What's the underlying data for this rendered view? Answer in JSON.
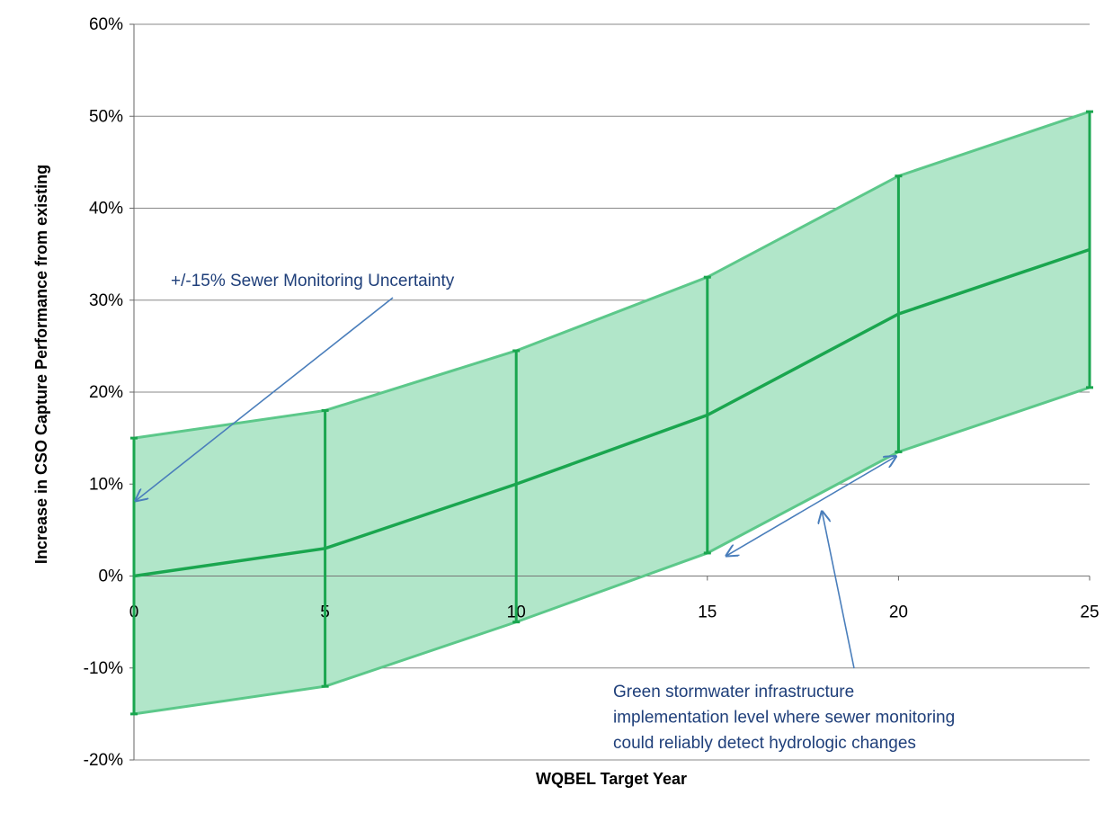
{
  "chart_data": {
    "type": "area",
    "title": "",
    "xlabel": "WQBEL Target Year",
    "ylabel": "Increase in CSO Capture Performance from existing",
    "x": [
      0,
      5,
      10,
      15,
      20,
      25
    ],
    "xlim": [
      0,
      25
    ],
    "ylim": [
      -0.2,
      0.6
    ],
    "x_ticks": [
      "0",
      "5",
      "10",
      "15",
      "20",
      "25"
    ],
    "y_ticks": [
      "-20%",
      "-10%",
      "0%",
      "10%",
      "20%",
      "30%",
      "40%",
      "50%",
      "60%"
    ],
    "y_tick_values": [
      -0.2,
      -0.1,
      0,
      0.1,
      0.2,
      0.3,
      0.4,
      0.5,
      0.6
    ],
    "grid": true,
    "series": [
      {
        "values": [
          0.0,
          0.03,
          0.1,
          0.175,
          0.285,
          0.355
        ]
      },
      {
        "values": [
          0.15,
          0.18,
          0.245,
          0.325,
          0.435,
          0.505
        ]
      },
      {
        "values": [
          -0.15,
          -0.12,
          -0.05,
          0.025,
          0.135,
          0.205
        ]
      }
    ],
    "annotations": [
      {
        "id": "uncertainty",
        "lines": [
          "+/-15% Sewer Monitoring Uncertainty"
        ],
        "arrow_target": {
          "x": 0,
          "y": 0.08
        }
      },
      {
        "id": "gsi",
        "lines": [
          "Green stormwater infrastructure",
          "implementation level where sewer monitoring",
          "could reliably detect hydrologic changes"
        ],
        "arrow_target": {
          "x": 18,
          "y": 0.07
        },
        "bracket": [
          {
            "x": 15.5,
            "y": 0.025
          },
          {
            "x": 20,
            "y": 0.13
          }
        ]
      }
    ],
    "colors": {
      "fill": "#b1e6c9",
      "band_line": "#5cc88a",
      "center_line": "#1aa64f",
      "error_bar": "#1aa64f",
      "annotation_text": "#1f3f7a",
      "annotation_arrow": "#4a7ebb",
      "grid": "#888888"
    }
  }
}
